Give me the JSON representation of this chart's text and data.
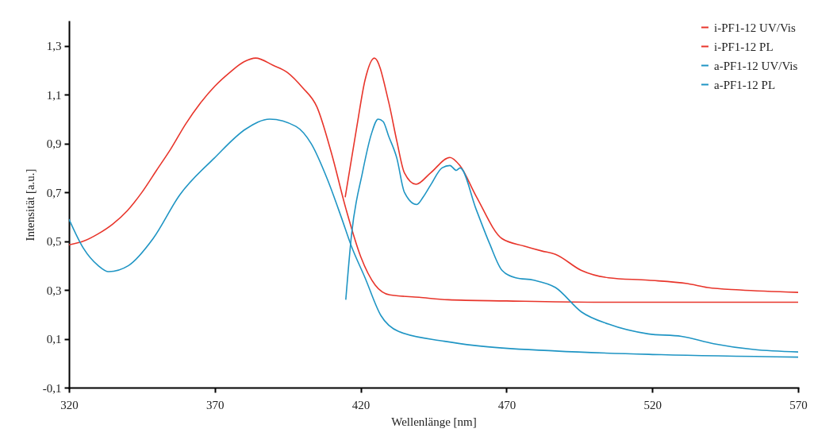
{
  "chart_data": {
    "type": "line",
    "xlabel": "Wellenlänge [nm]",
    "ylabel": "Intensität [a.u.]",
    "xlim": [
      320,
      570
    ],
    "xticks": [
      320,
      370,
      420,
      470,
      520,
      570
    ],
    "ylim": [
      -0.1,
      1.4
    ],
    "yticks": [
      {
        "value": -0.1,
        "label": "-0,1"
      },
      {
        "value": 0.1,
        "label": "0,1"
      },
      {
        "value": 0.3,
        "label": "0,3"
      },
      {
        "value": 0.5,
        "label": "0,5"
      },
      {
        "value": 0.7,
        "label": "0,7"
      },
      {
        "value": 0.9,
        "label": "0,9"
      },
      {
        "value": 1.1,
        "label": "1,1"
      },
      {
        "value": 1.3,
        "label": "1,3"
      }
    ],
    "grid": false,
    "legend": "top right",
    "line_style": "solid",
    "marker": "none",
    "series": [
      {
        "name": "i-PF1-12 UV/Vis",
        "color": "#e8352b",
        "x": [
          320,
          325,
          330,
          335,
          340,
          345,
          350,
          355,
          360,
          365,
          370,
          375,
          380,
          384,
          390,
          395,
          400,
          405,
          410,
          415,
          420,
          425,
          430,
          440,
          450,
          470,
          500,
          570
        ],
        "values": [
          0.485,
          0.5,
          0.53,
          0.57,
          0.625,
          0.7,
          0.79,
          0.88,
          0.98,
          1.065,
          1.135,
          1.19,
          1.235,
          1.25,
          1.22,
          1.19,
          1.13,
          1.05,
          0.86,
          0.63,
          0.437,
          0.32,
          0.28,
          0.27,
          0.26,
          0.255,
          0.25,
          0.25
        ]
      },
      {
        "name": "i-PF1-12 PL",
        "color": "#e8352b",
        "x": [
          414.7,
          418.7,
          421.5,
          424.7,
          429.6,
          432.4,
          435,
          439,
          444,
          450.6,
          454,
          459.6,
          468.5,
          476,
          482,
          486.8,
          495.7,
          505,
          518.6,
          532,
          539,
          550,
          570
        ],
        "values": [
          0.68,
          0.97,
          1.16,
          1.25,
          1.07,
          0.91,
          0.78,
          0.733,
          0.78,
          0.843,
          0.81,
          0.684,
          0.51,
          0.48,
          0.46,
          0.446,
          0.38,
          0.35,
          0.34,
          0.326,
          0.31,
          0.3,
          0.29
        ]
      },
      {
        "name": "a-PF1-12 UV/Vis",
        "color": "#1f95c4",
        "x": [
          320,
          325,
          330,
          333.6,
          340.4,
          348.8,
          358,
          369.8,
          380.7,
          388.8,
          397.8,
          403,
          408.7,
          413.3,
          416.8,
          421.5,
          426.9,
          433,
          448.7,
          459.5,
          486.8,
          523,
          570
        ],
        "values": [
          0.59,
          0.47,
          0.4,
          0.375,
          0.4,
          0.51,
          0.69,
          0.84,
          0.96,
          1.0,
          0.97,
          0.9,
          0.75,
          0.6,
          0.48,
          0.35,
          0.196,
          0.13,
          0.09,
          0.072,
          0.05,
          0.035,
          0.025
        ]
      },
      {
        "name": "a-PF1-12 PL",
        "color": "#1f95c4",
        "x": [
          414.9,
          416.9,
          420.6,
          423.7,
          426,
          427.7,
          429.6,
          432.4,
          435,
          439.2,
          441.4,
          444,
          447.9,
          450.6,
          452.8,
          454.1,
          459.6,
          464.2,
          468.5,
          473.2,
          479.4,
          486.8,
          495.7,
          505,
          518.6,
          530,
          541,
          554.8,
          570
        ],
        "values": [
          0.26,
          0.53,
          0.78,
          0.94,
          1.0,
          0.99,
          0.93,
          0.84,
          0.7,
          0.65,
          0.68,
          0.73,
          0.8,
          0.81,
          0.79,
          0.8,
          0.63,
          0.49,
          0.38,
          0.35,
          0.34,
          0.31,
          0.21,
          0.16,
          0.12,
          0.11,
          0.08,
          0.056,
          0.046
        ]
      }
    ]
  }
}
